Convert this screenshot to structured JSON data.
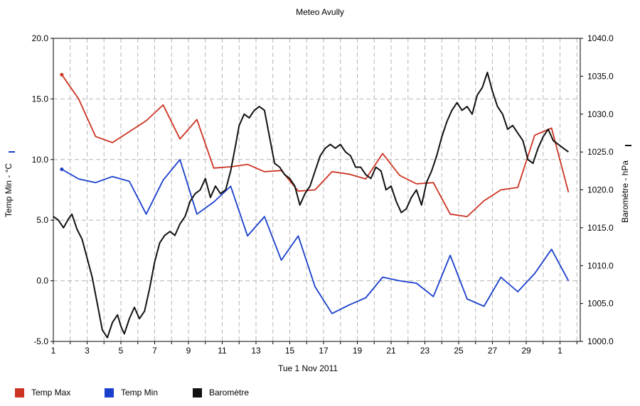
{
  "chart_data": {
    "type": "line",
    "title": "Meteo  Avully",
    "xlabel": "Tue 1 Nov 2011",
    "ylabel_left": "Temp Min - °C",
    "ylabel_right": "Baromètre - hPa",
    "x_tick_labels": [
      "1",
      "3",
      "5",
      "7",
      "9",
      "11",
      "13",
      "15",
      "17",
      "19",
      "21",
      "23",
      "25",
      "27",
      "29",
      "1"
    ],
    "x_tick_days": [
      1,
      3,
      5,
      7,
      9,
      11,
      13,
      15,
      17,
      19,
      21,
      23,
      25,
      27,
      29,
      31
    ],
    "x_range": [
      1,
      32.2
    ],
    "y_left_range": [
      -5,
      20
    ],
    "y_left_ticks": [
      "-5.0",
      "0.0",
      "5.0",
      "10.0",
      "15.0",
      "20.0"
    ],
    "y_right_range": [
      1000,
      1040
    ],
    "y_right_ticks": [
      "1000.0",
      "1005.0",
      "1010.0",
      "1015.0",
      "1020.0",
      "1025.0",
      "1030.0",
      "1035.0",
      "1040.0"
    ],
    "grid": true,
    "legend_position": "bottom",
    "series": [
      {
        "name": "Temp Max",
        "color": "#cc3322",
        "axis": "left",
        "x": [
          1.5,
          2.5,
          3.5,
          4.5,
          5.5,
          6.5,
          7.5,
          8.5,
          9.5,
          10.5,
          11.5,
          12.5,
          13.5,
          14.5,
          15.5,
          16.5,
          17.5,
          18.5,
          19.5,
          20.5,
          21.5,
          22.5,
          23.5,
          24.5,
          25.5,
          26.5,
          27.5,
          28.5,
          29.5,
          30.5,
          31.5
        ],
        "values": [
          17.0,
          15.0,
          11.9,
          11.4,
          12.3,
          13.2,
          14.5,
          11.7,
          13.3,
          9.3,
          9.4,
          9.6,
          9.0,
          9.1,
          7.4,
          7.5,
          9.0,
          8.8,
          8.4,
          10.5,
          8.7,
          8.0,
          8.1,
          5.5,
          5.3,
          6.6,
          7.5,
          7.7,
          12.0,
          12.6,
          7.3
        ]
      },
      {
        "name": "Temp Min",
        "color": "#1a3fcc",
        "axis": "left",
        "x": [
          1.5,
          2.5,
          3.5,
          4.5,
          5.5,
          6.5,
          7.5,
          8.5,
          9.5,
          10.5,
          11.5,
          12.5,
          13.5,
          14.5,
          15.5,
          16.5,
          17.5,
          18.5,
          19.5,
          20.5,
          21.5,
          22.5,
          23.5,
          24.5,
          25.5,
          26.5,
          27.5,
          28.5,
          29.5,
          30.5,
          31.5
        ],
        "values": [
          9.2,
          8.4,
          8.1,
          8.6,
          8.2,
          5.5,
          8.3,
          10.0,
          5.5,
          6.5,
          7.8,
          3.7,
          5.3,
          1.7,
          3.7,
          -0.5,
          -2.7,
          -2.0,
          -1.4,
          0.3,
          0.0,
          -0.2,
          -1.3,
          2.1,
          -1.5,
          -2.1,
          0.3,
          -0.9,
          0.6,
          2.6,
          0.0
        ]
      },
      {
        "name": "Baromètre",
        "color": "#111111",
        "axis": "right",
        "x": [
          1.0,
          1.3,
          1.6,
          1.9,
          2.1,
          2.4,
          2.7,
          3.0,
          3.3,
          3.6,
          3.9,
          4.2,
          4.5,
          4.8,
          5.0,
          5.2,
          5.5,
          5.8,
          6.1,
          6.4,
          6.7,
          7.0,
          7.3,
          7.6,
          7.9,
          8.2,
          8.5,
          8.8,
          9.1,
          9.4,
          9.7,
          10.0,
          10.3,
          10.6,
          10.9,
          11.2,
          11.5,
          11.8,
          12.0,
          12.3,
          12.6,
          12.9,
          13.2,
          13.5,
          13.8,
          14.1,
          14.4,
          14.7,
          15.0,
          15.3,
          15.6,
          15.9,
          16.2,
          16.5,
          16.8,
          17.1,
          17.4,
          17.7,
          18.0,
          18.3,
          18.6,
          18.9,
          19.2,
          19.5,
          19.8,
          20.1,
          20.4,
          20.7,
          21.0,
          21.3,
          21.6,
          21.9,
          22.2,
          22.5,
          22.8,
          23.1,
          23.4,
          23.7,
          24.0,
          24.3,
          24.6,
          24.9,
          25.2,
          25.5,
          25.8,
          26.1,
          26.4,
          26.7,
          27.0,
          27.3,
          27.6,
          27.9,
          28.2,
          28.5,
          28.8,
          29.1,
          29.4,
          29.7,
          30.0,
          30.3,
          30.6,
          30.9,
          31.2,
          31.5
        ],
        "values": [
          1016.5,
          1016.0,
          1015.0,
          1016.2,
          1016.8,
          1014.8,
          1013.5,
          1011.0,
          1008.5,
          1005.0,
          1001.5,
          1000.5,
          1002.5,
          1003.5,
          1002.0,
          1001.0,
          1003.0,
          1004.5,
          1003.0,
          1004.0,
          1007.0,
          1010.5,
          1013.0,
          1014.0,
          1014.5,
          1014.0,
          1015.5,
          1016.5,
          1018.5,
          1019.5,
          1020.0,
          1021.5,
          1019.0,
          1020.5,
          1019.5,
          1020.0,
          1022.5,
          1026.0,
          1028.5,
          1030.0,
          1029.5,
          1030.5,
          1031.0,
          1030.5,
          1027.0,
          1023.5,
          1023.0,
          1022.0,
          1021.5,
          1020.5,
          1018.0,
          1019.5,
          1020.5,
          1022.5,
          1024.5,
          1025.5,
          1026.0,
          1025.5,
          1026.0,
          1025.0,
          1024.5,
          1023.0,
          1023.0,
          1022.0,
          1021.5,
          1023.0,
          1022.5,
          1020.0,
          1020.5,
          1018.5,
          1017.0,
          1017.5,
          1019.0,
          1020.0,
          1018.0,
          1021.0,
          1022.5,
          1024.5,
          1027.0,
          1029.0,
          1030.5,
          1031.5,
          1030.5,
          1031.0,
          1030.0,
          1032.5,
          1033.5,
          1035.5,
          1033.0,
          1031.0,
          1030.0,
          1028.0,
          1028.5,
          1027.5,
          1026.5,
          1024.0,
          1023.5,
          1025.5,
          1027.0,
          1028.0,
          1026.5,
          1026.0,
          1025.5,
          1025.0
        ]
      }
    ]
  }
}
